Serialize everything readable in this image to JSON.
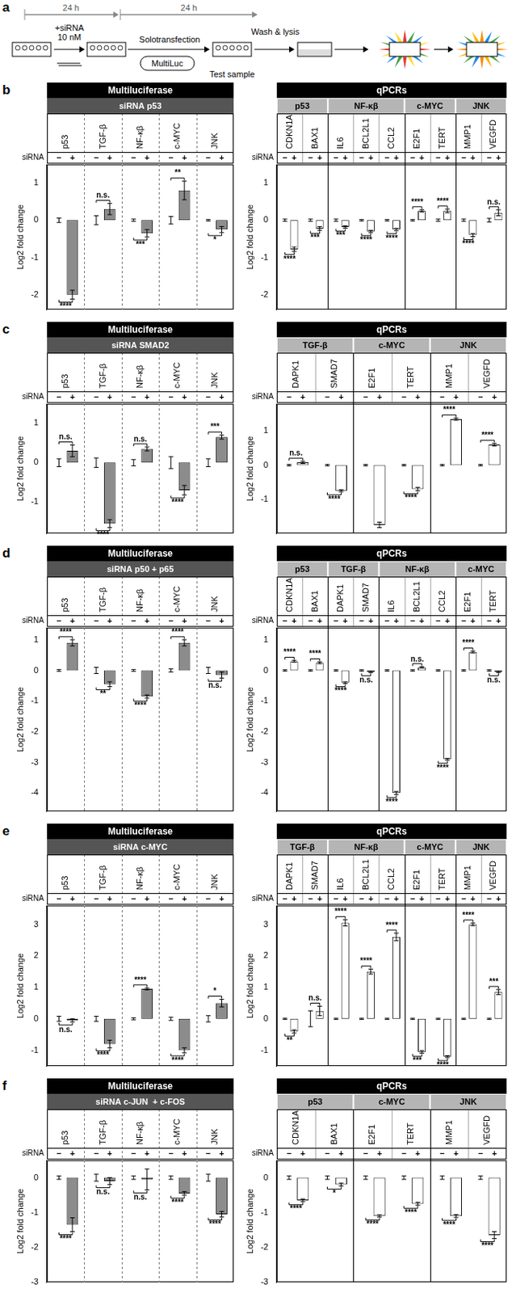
{
  "diagram": {
    "label": "a",
    "interval_1": "24 h",
    "interval_2": "24 h",
    "treatment": "+siRNA",
    "dose": "10 nM",
    "method": "Solotransfection",
    "reagent": "MultiLuc",
    "sample": "Test sample",
    "step": "Wash & lysis"
  },
  "chart_data": [
    {
      "panel": "b",
      "type": "bar",
      "title": "Multiluciferase",
      "subtitle": "siRNA p53",
      "x_label": "siRNA",
      "y_label": "Log2 fold change",
      "categories": [
        "p53",
        "TGF-β",
        "NF-κβ",
        "c-MYC",
        "JNK"
      ],
      "series": [
        {
          "name": "−",
          "color": "#8c8c8c",
          "values": [
            0,
            0,
            0,
            0,
            0
          ],
          "errors": [
            0.06,
            0.12,
            0.03,
            0.1,
            0.02
          ]
        },
        {
          "name": "+",
          "color": "#8c8c8c",
          "values": [
            -2.0,
            0.3,
            -0.35,
            0.8,
            -0.25
          ],
          "errors": [
            0.12,
            0.15,
            0.1,
            0.25,
            0.08
          ]
        }
      ],
      "significance": [
        "****",
        "n.s.",
        "***",
        "**",
        "*"
      ],
      "ylim": [
        -2.4,
        1.5
      ],
      "yticks": [
        -2,
        -1,
        0,
        1
      ]
    },
    {
      "panel": "b",
      "type": "bar",
      "title": "qPCRs",
      "x_label": "siRNA",
      "y_label": "Log2 fold change",
      "groups": [
        "p53",
        "p53",
        "NF-κβ",
        "NF-κβ",
        "NF-κβ",
        "c-MYC",
        "c-MYC",
        "JNK",
        "JNK"
      ],
      "categories": [
        "CDKN1A",
        "BAX1",
        "IL6",
        "BCL2L1",
        "CCL2",
        "E2F1",
        "TERT",
        "MMP1",
        "VEGFD"
      ],
      "series": [
        {
          "name": "−",
          "color": "#ffffff",
          "values": [
            0,
            0,
            0,
            0,
            0,
            0,
            0,
            0,
            0
          ],
          "errors": [
            0.03,
            0.03,
            0.03,
            0.02,
            0.02,
            0.02,
            0.03,
            0.03,
            0.05
          ]
        },
        {
          "name": "+",
          "color": "#ffffff",
          "values": [
            -0.78,
            -0.22,
            -0.18,
            -0.3,
            -0.25,
            0.25,
            0.25,
            -0.4,
            0.2
          ],
          "errors": [
            0.06,
            0.05,
            0.03,
            0.03,
            0.03,
            0.03,
            0.05,
            0.04,
            0.08
          ]
        }
      ],
      "significance": [
        "****",
        "***",
        "***",
        "****",
        "****",
        "****",
        "****",
        "****",
        "n.s."
      ],
      "ylim": [
        -2.4,
        1.5
      ],
      "yticks": [
        -2,
        -1,
        0,
        1
      ]
    },
    {
      "panel": "c",
      "type": "bar",
      "title": "Multiluciferase",
      "subtitle": "siRNA SMAD2",
      "x_label": "siRNA",
      "y_label": "Log2 fold change",
      "categories": [
        "p53",
        "TGF-β",
        "NF-κβ",
        "c-MYC",
        "JNK"
      ],
      "series": [
        {
          "name": "−",
          "color": "#8c8c8c",
          "values": [
            0,
            0,
            0,
            0,
            0
          ],
          "errors": [
            0.1,
            0.12,
            0.08,
            0.15,
            0.1
          ]
        },
        {
          "name": "+",
          "color": "#8c8c8c",
          "values": [
            0.3,
            -1.55,
            0.35,
            -0.7,
            0.65
          ],
          "errors": [
            0.15,
            0.1,
            0.05,
            0.12,
            0.05
          ]
        }
      ],
      "significance": [
        "n.s.",
        "****",
        "n.s.",
        "****",
        "***"
      ],
      "ylim": [
        -1.8,
        1.5
      ],
      "yticks": [
        -1,
        0,
        1
      ]
    },
    {
      "panel": "c",
      "type": "bar",
      "title": "qPCRs",
      "x_label": "siRNA",
      "y_label": "Log2 fold change",
      "groups": [
        "TGF-β",
        "TGF-β",
        "c-MYC",
        "c-MYC",
        "JNK",
        "JNK"
      ],
      "categories": [
        "DAPK1",
        "SMAD7",
        "E2F1",
        "TERT",
        "MMP1",
        "VEGFD"
      ],
      "series": [
        {
          "name": "−",
          "color": "#ffffff",
          "values": [
            0,
            0,
            0,
            0,
            0,
            0
          ],
          "errors": [
            0.02,
            0.02,
            0.02,
            0.02,
            0.02,
            0.02
          ]
        },
        {
          "name": "+",
          "color": "#ffffff",
          "values": [
            0.08,
            -0.75,
            -1.75,
            -0.7,
            1.35,
            0.6
          ],
          "errors": [
            0.03,
            0.03,
            0.08,
            0.05,
            0.03,
            0.04
          ]
        }
      ],
      "significance": [
        "n.s.",
        "****",
        null,
        "****",
        "****",
        "****"
      ],
      "ylim": [
        -2.0,
        1.8
      ],
      "yticks": [
        -1,
        0,
        1
      ]
    },
    {
      "panel": "d",
      "type": "bar",
      "title": "Multiluciferase",
      "subtitle": "siRNA p50 + p65",
      "x_label": "siRNA",
      "y_label": "Log2 fold change",
      "categories": [
        "p53",
        "TGF-β",
        "NF-κβ",
        "c-MYC",
        "JNK"
      ],
      "series": [
        {
          "name": "−",
          "color": "#8c8c8c",
          "values": [
            0,
            0,
            0,
            0,
            0
          ],
          "errors": [
            0.03,
            0.1,
            0.03,
            0.05,
            0.1
          ]
        },
        {
          "name": "+",
          "color": "#8c8c8c",
          "values": [
            0.9,
            -0.45,
            -0.85,
            0.9,
            -0.15
          ],
          "errors": [
            0.1,
            0.08,
            0.05,
            0.1,
            0.1
          ]
        }
      ],
      "significance": [
        "****",
        "**",
        "****",
        "****",
        "n.s."
      ],
      "ylim": [
        -4.6,
        1.4
      ],
      "yticks": [
        -4,
        -3,
        -2,
        -1,
        0,
        1
      ]
    },
    {
      "panel": "d",
      "type": "bar",
      "title": "qPCRs",
      "x_label": "siRNA",
      "y_label": "Log2 fold change",
      "groups": [
        "p53",
        "p53",
        "TGF-β",
        "TGF-β",
        "NF-κβ",
        "NF-κβ",
        "NF-κβ",
        "c-MYC",
        "c-MYC"
      ],
      "categories": [
        "CDKN1A",
        "BAX1",
        "DAPK1",
        "SMAD7",
        "IL6",
        "BCL2L1",
        "CCL2",
        "E2F1",
        "TERT"
      ],
      "series": [
        {
          "name": "−",
          "color": "#ffffff",
          "values": [
            0,
            0,
            0,
            0,
            0,
            0,
            0,
            0,
            0
          ],
          "errors": [
            0.02,
            0.02,
            0.02,
            0.02,
            0.02,
            0.02,
            0.02,
            0.02,
            0.02
          ]
        },
        {
          "name": "+",
          "color": "#ffffff",
          "values": [
            0.3,
            0.25,
            -0.4,
            -0.05,
            -4.0,
            0.1,
            -2.9,
            0.6,
            -0.05
          ],
          "errors": [
            0.03,
            0.03,
            0.03,
            0.02,
            0.05,
            0.02,
            0.03,
            0.03,
            0.02
          ]
        }
      ],
      "significance": [
        "****",
        "****",
        "****",
        "n.s.",
        "****",
        "n.s.",
        "****",
        "****",
        "n.s."
      ],
      "ylim": [
        -4.6,
        1.4
      ],
      "yticks": [
        -4,
        -3,
        -2,
        -1,
        0,
        1
      ]
    },
    {
      "panel": "e",
      "type": "bar",
      "title": "Multiluciferase",
      "subtitle": "siRNA c-MYC",
      "x_label": "siRNA",
      "y_label": "Log2 fold change",
      "categories": [
        "p53",
        "TGF-β",
        "NF-κβ",
        "c-MYC",
        "JNK"
      ],
      "series": [
        {
          "name": "−",
          "color": "#8c8c8c",
          "values": [
            0,
            0,
            0,
            0,
            0
          ],
          "errors": [
            0.08,
            0.08,
            0.03,
            0.05,
            0.1
          ]
        },
        {
          "name": "+",
          "color": "#8c8c8c",
          "values": [
            -0.05,
            -0.8,
            0.95,
            -1.0,
            0.5
          ],
          "errors": [
            0.05,
            0.12,
            0.03,
            0.08,
            0.12
          ]
        }
      ],
      "significance": [
        "n.s.",
        "****",
        "****",
        "****",
        "*"
      ],
      "ylim": [
        -1.5,
        3.6
      ],
      "yticks": [
        -1,
        0,
        1,
        2,
        3
      ]
    },
    {
      "panel": "e",
      "type": "bar",
      "title": "qPCRs",
      "x_label": "siRNA",
      "y_label": "Log2 fold change",
      "groups": [
        "TGF-β",
        "TGF-β",
        "NF-κβ",
        "NF-κβ",
        "NF-κβ",
        "c-MYC",
        "c-MYC",
        "JNK",
        "JNK"
      ],
      "categories": [
        "DAPK1",
        "SMAD7",
        "IL6",
        "BCL2L1",
        "CCL2",
        "E2F1",
        "TERT",
        "MMP1",
        "VEGFD"
      ],
      "series": [
        {
          "name": "−",
          "color": "#ffffff",
          "values": [
            0,
            0,
            0,
            0,
            0,
            0,
            0,
            0,
            0
          ],
          "errors": [
            0.02,
            0.25,
            0.02,
            0.02,
            0.02,
            0.02,
            0.02,
            0.02,
            0.02
          ]
        },
        {
          "name": "+",
          "color": "#ffffff",
          "values": [
            -0.4,
            0.25,
            3.05,
            1.5,
            2.6,
            -1.05,
            -1.2,
            3.0,
            0.85
          ],
          "errors": [
            0.05,
            0.15,
            0.1,
            0.08,
            0.12,
            0.04,
            0.03,
            0.04,
            0.08
          ]
        }
      ],
      "significance": [
        "**",
        "n.s.",
        "****",
        "****",
        "****",
        "***",
        "****",
        "****",
        "***"
      ],
      "ylim": [
        -1.5,
        3.6
      ],
      "yticks": [
        -1,
        0,
        1,
        2,
        3
      ]
    },
    {
      "panel": "f",
      "type": "bar",
      "title": "Multiluciferase",
      "subtitle": "siRNA c-JUN  + c-FOS",
      "x_label": "siRNA",
      "y_label": "Log2 fold change",
      "categories": [
        "p53",
        "TGF-β",
        "NF-κβ",
        "c-MYC",
        "JNK"
      ],
      "series": [
        {
          "name": "−",
          "color": "#8c8c8c",
          "values": [
            0,
            0,
            0,
            0,
            0
          ],
          "errors": [
            0.05,
            0.1,
            0.05,
            0.05,
            0.1
          ]
        },
        {
          "name": "+",
          "color": "#8c8c8c",
          "values": [
            -1.35,
            -0.1,
            -0.05,
            -0.45,
            -1.05
          ],
          "errors": [
            0.2,
            0.1,
            0.3,
            0.05,
            0.08
          ]
        }
      ],
      "significance": [
        "****",
        "n.s.",
        "n.s.",
        "****",
        "****"
      ],
      "ylim": [
        -3,
        0.5
      ],
      "yticks": [
        -3,
        -2,
        -1,
        0
      ]
    },
    {
      "panel": "f",
      "type": "bar",
      "title": "qPCRs",
      "x_label": "siRNA",
      "y_label": "Log2 fold change",
      "groups": [
        "p53",
        "p53",
        "c-MYC",
        "c-MYC",
        "JNK",
        "JNK"
      ],
      "categories": [
        "CDKN1A",
        "BAX1",
        "E2F1",
        "TERT",
        "MMP1",
        "VEGFD"
      ],
      "series": [
        {
          "name": "−",
          "color": "#ffffff",
          "values": [
            0,
            0,
            0,
            0,
            0,
            0
          ],
          "errors": [
            0.05,
            0.05,
            0.05,
            0.05,
            0.05,
            0.05
          ]
        },
        {
          "name": "+",
          "color": "#ffffff",
          "values": [
            -0.65,
            -0.2,
            -1.1,
            -0.75,
            -1.1,
            -1.65
          ],
          "errors": [
            0.04,
            0.04,
            0.03,
            0.04,
            0.04,
            0.1
          ]
        }
      ],
      "significance": [
        "****",
        "*",
        "****",
        "****",
        "****",
        "****"
      ],
      "ylim": [
        -3,
        0.5
      ],
      "yticks": [
        -3,
        -2,
        -1,
        0
      ]
    }
  ]
}
